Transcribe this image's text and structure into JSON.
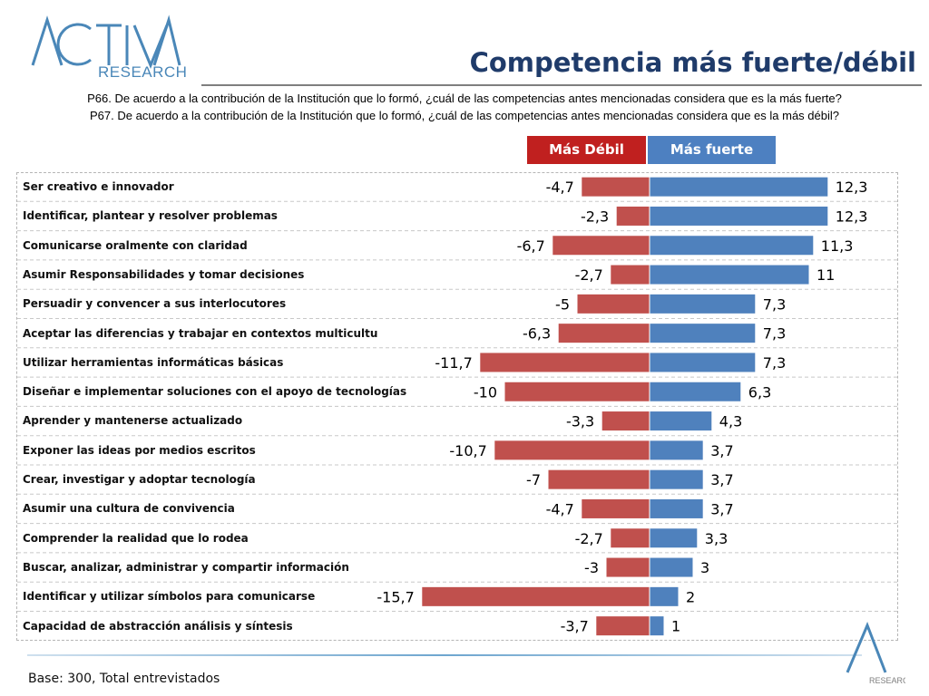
{
  "header": {
    "logo_text": "ACTIVA",
    "logo_subtext": "RESEARCH",
    "title": "Competencia más fuerte/débil",
    "question_p66": "P66. De acuerdo a la contribución de la Institución que lo formó, ¿cuál de las competencias antes mencionadas considera que es la más fuerte?",
    "question_p67": "P67. De acuerdo a la contribución de la Institución que lo formó, ¿cuál de las competencias antes mencionadas considera que es la más débil?"
  },
  "footer": {
    "base_note": "Base: 300, Total entrevistados",
    "corner_logo_text": "RESEARCH"
  },
  "colors": {
    "weak": "#c0504d",
    "strong": "#4f81bd",
    "weak_legend": "#c0201f",
    "strong_legend": "#4d80c1",
    "title": "#1f3b6a"
  },
  "chart_data": {
    "type": "bar",
    "orientation": "horizontal",
    "legend": [
      "Más Débil",
      "Más fuerte"
    ],
    "categories": [
      "Ser creativo e innovador",
      "Identificar, plantear y resolver problemas",
      "Comunicarse oralmente con claridad",
      "Asumir Responsabilidades y tomar decisiones",
      "Persuadir y convencer a sus interlocutores",
      "Aceptar las diferencias y trabajar en contextos multicultu",
      "Utilizar herramientas informáticas básicas",
      "Diseñar e implementar soluciones con el apoyo de tecnologías",
      "Aprender y mantenerse actualizado",
      "Exponer las ideas por medios escritos",
      "Crear, investigar y adoptar tecnología",
      "Asumir una cultura de convivencia",
      "Comprender la realidad que lo rodea",
      "Buscar, analizar, administrar y compartir información",
      "Identificar y utilizar símbolos para comunicarse",
      "Capacidad de abstracción análisis y síntesis"
    ],
    "series": [
      {
        "name": "Más Débil",
        "values": [
          -4.7,
          -2.3,
          -6.7,
          -2.7,
          -5,
          -6.3,
          -11.7,
          -10,
          -3.3,
          -10.7,
          -7,
          -4.7,
          -2.7,
          -3,
          -15.7,
          -3.7
        ],
        "labels": [
          "-4,7",
          "-2,3",
          "-6,7",
          "-2,7",
          "-5",
          "-6,3",
          "-11,7",
          "-10",
          "-3,3",
          "-10,7",
          "-7",
          "-4,7",
          "-2,7",
          "-3",
          "-15,7",
          "-3,7"
        ]
      },
      {
        "name": "Más fuerte",
        "values": [
          12.3,
          12.3,
          11.3,
          11,
          7.3,
          7.3,
          7.3,
          6.3,
          4.3,
          3.7,
          3.7,
          3.7,
          3.3,
          3,
          2,
          1
        ],
        "labels": [
          "12,3",
          "12,3",
          "11,3",
          "11",
          "7,3",
          "7,3",
          "7,3",
          "6,3",
          "4,3",
          "3,7",
          "3,7",
          "3,7",
          "3,3",
          "3",
          "2",
          "1"
        ]
      }
    ]
  }
}
